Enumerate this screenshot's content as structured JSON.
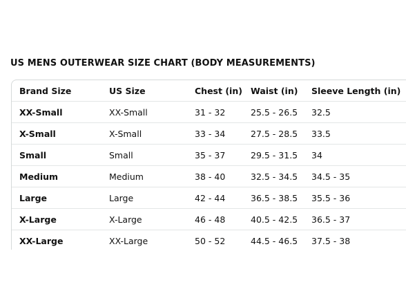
{
  "title": "US MENS OUTERWEAR SIZE CHART (BODY MEASUREMENTS)",
  "columns": [
    "Brand Size",
    "US Size",
    "Chest (in)",
    "Waist (in)",
    "Sleeve Length (in)"
  ],
  "rows": [
    [
      "XX-Small",
      "XX-Small",
      "31 - 32",
      "25.5 - 26.5",
      "32.5"
    ],
    [
      "X-Small",
      "X-Small",
      "33 - 34",
      "27.5 - 28.5",
      "33.5"
    ],
    [
      "Small",
      "Small",
      "35 - 37",
      "29.5 - 31.5",
      "34"
    ],
    [
      "Medium",
      "Medium",
      "38 - 40",
      "32.5 - 34.5",
      "34.5 - 35"
    ],
    [
      "Large",
      "Large",
      "42 - 44",
      "36.5 - 38.5",
      "35.5 - 36"
    ],
    [
      "X-Large",
      "X-Large",
      "46 - 48",
      "40.5 - 42.5",
      "36.5 - 37"
    ],
    [
      "XX-Large",
      "XX-Large",
      "50 - 52",
      "44.5 - 46.5",
      "37.5 - 38"
    ]
  ]
}
